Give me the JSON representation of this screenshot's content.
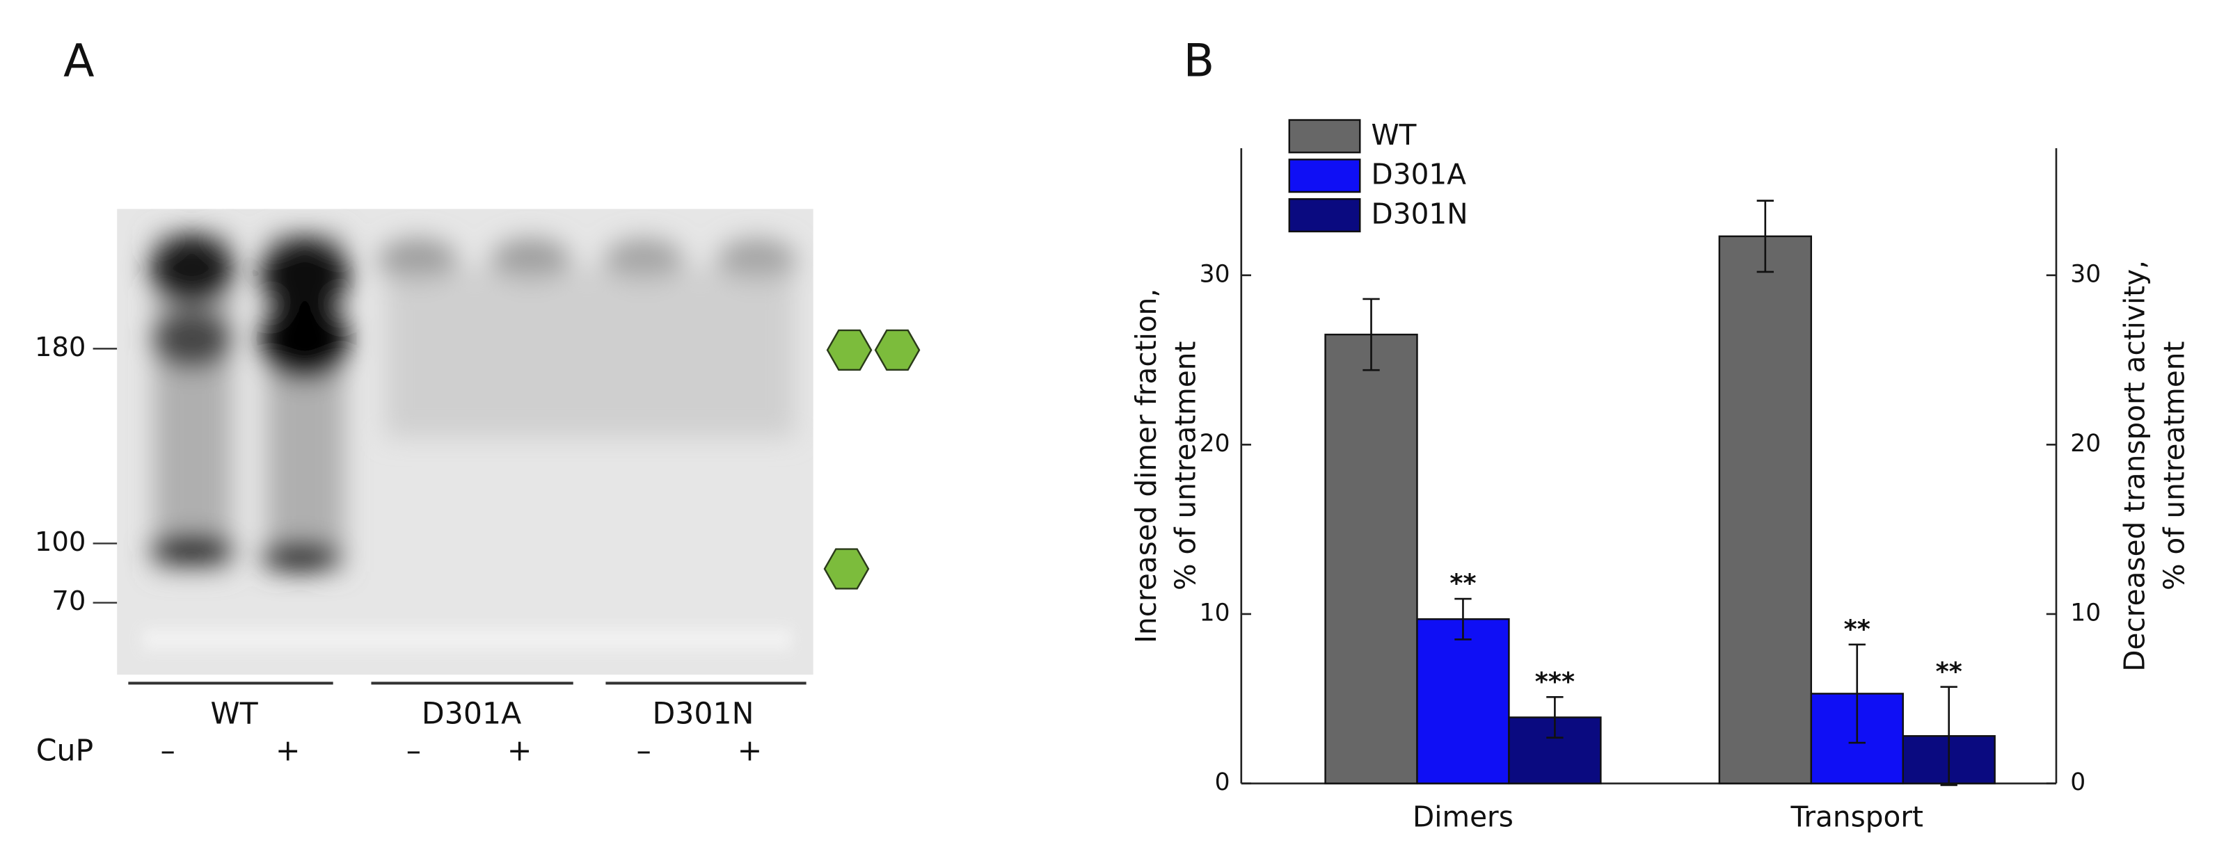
{
  "panel_a": {
    "label": "A",
    "markers": [
      "180",
      "100",
      "70"
    ],
    "groups": [
      "WT",
      "D301A",
      "D301N"
    ],
    "treatment": "CuP",
    "signs": [
      "–",
      "+",
      "–",
      "+",
      "–",
      "+"
    ]
  },
  "chart_data": {
    "type": "bar",
    "panel_label": "B",
    "categories": [
      "Dimers",
      "Transport"
    ],
    "series": [
      {
        "name": "WT",
        "color": "#676767",
        "values": [
          26.5,
          32.3
        ],
        "errors": [
          2.1,
          2.1
        ],
        "annotations": [
          null,
          null
        ]
      },
      {
        "name": "D301A",
        "color": "#0f0ff5",
        "values": [
          9.7,
          5.3
        ],
        "errors": [
          1.2,
          2.9
        ],
        "annotations": [
          "**",
          "**"
        ]
      },
      {
        "name": "D301N",
        "color": "#0a0a80",
        "values": [
          3.9,
          2.8
        ],
        "errors": [
          1.2,
          2.9
        ],
        "annotations": [
          "***",
          "**"
        ]
      }
    ],
    "ylabel": [
      "Increased dimer fraction,",
      "% of untreatment"
    ],
    "y2label": [
      "Decreased transport activity,",
      "% of untreatment"
    ],
    "ylim": [
      0,
      37.5
    ],
    "yticks": [
      0,
      10,
      20,
      30
    ],
    "y2lim": [
      0,
      37.5
    ],
    "y2ticks": [
      0,
      10,
      20,
      30
    ],
    "legend": "top-left"
  }
}
